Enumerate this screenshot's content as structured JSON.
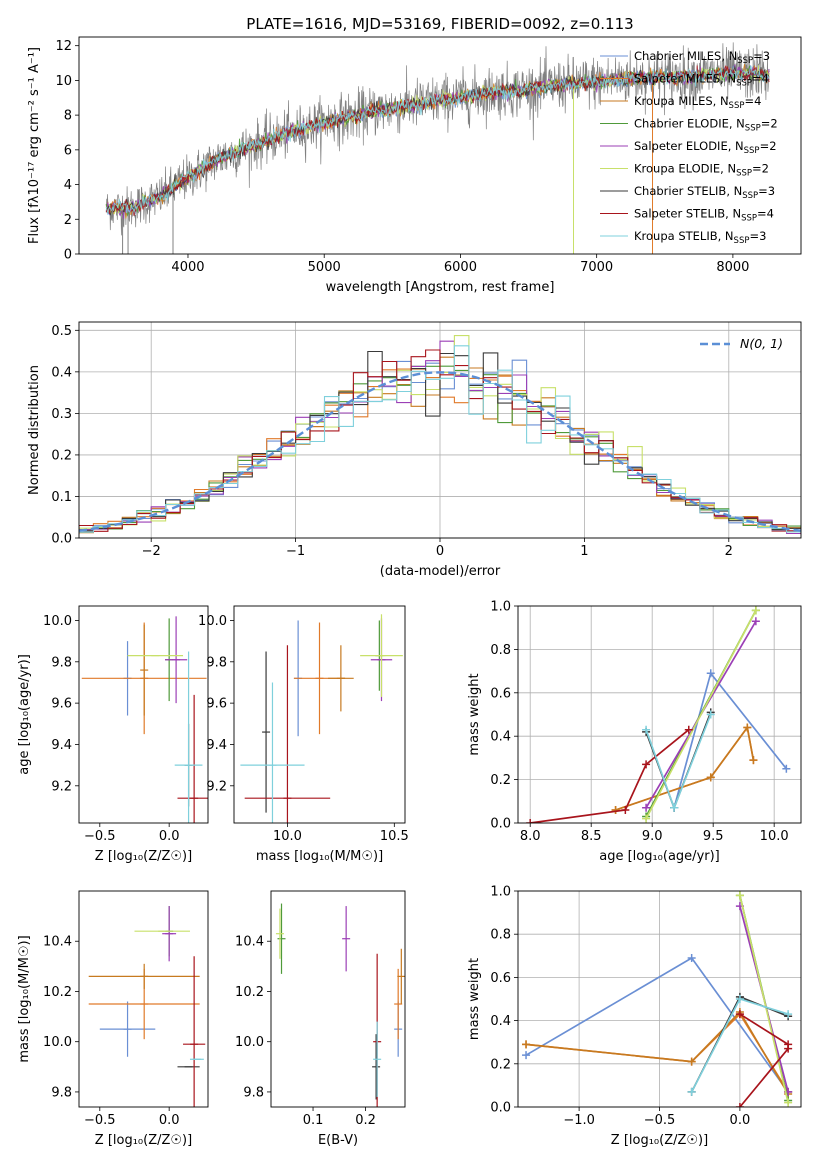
{
  "colors": {
    "Chabrier MILES": "#6a8fd4",
    "Salpeter MILES": "#e07a2a",
    "Kroupa MILES": "#c77a20",
    "Chabrier ELODIE": "#4f9a3a",
    "Salpeter ELODIE": "#9b3fb6",
    "Kroupa ELODIE": "#c8e06a",
    "Chabrier STELIB": "#3a3a3a",
    "Salpeter STELIB": "#a8141c",
    "Kroupa STELIB": "#7fd0dc",
    "normal_curve": "#5b8fd6",
    "grid": "#b0b0b0",
    "data": "#808080"
  },
  "chart_data": [
    {
      "id": "spectrum",
      "type": "line",
      "title": "PLATE=1616, MJD=53169, FIBERID=0092, z=0.113",
      "xlabel": "wavelength [Angstrom, rest frame]",
      "ylabel": "Flux [fλ10⁻¹⁷ erg cm⁻² s⁻¹ A⁻¹]",
      "xlim": [
        3200,
        8500
      ],
      "ylim": [
        0,
        12.5
      ],
      "xticks": [
        4000,
        5000,
        6000,
        7000,
        8000
      ],
      "yticks": [
        0,
        2,
        4,
        6,
        8,
        10,
        12
      ],
      "legend": [
        {
          "label": "Chabrier MILES, N",
          "sub": "SSP",
          "suffix": "=3",
          "model": "Chabrier MILES"
        },
        {
          "label": "Salpeter MILES, N",
          "sub": "SSP",
          "suffix": "=4",
          "model": "Salpeter MILES"
        },
        {
          "label": "Kroupa MILES, N",
          "sub": "SSP",
          "suffix": "=4",
          "model": "Kroupa MILES"
        },
        {
          "label": "Chabrier ELODIE, N",
          "sub": "SSP",
          "suffix": "=2",
          "model": "Chabrier ELODIE"
        },
        {
          "label": "Salpeter ELODIE, N",
          "sub": "SSP",
          "suffix": "=2",
          "model": "Salpeter ELODIE"
        },
        {
          "label": "Kroupa ELODIE, N",
          "sub": "SSP",
          "suffix": "=2",
          "model": "Kroupa ELODIE"
        },
        {
          "label": "Chabrier STELIB, N",
          "sub": "SSP",
          "suffix": "=3",
          "model": "Chabrier STELIB"
        },
        {
          "label": "Salpeter STELIB, N",
          "sub": "SSP",
          "suffix": "=4",
          "model": "Salpeter STELIB"
        },
        {
          "label": "Kroupa STELIB, N",
          "sub": "SSP",
          "suffix": "=3",
          "model": "Kroupa STELIB"
        }
      ],
      "legend_position": "right",
      "continuum": {
        "wavelength": [
          3400,
          3600,
          3800,
          4000,
          4200,
          4400,
          4600,
          4800,
          5000,
          5200,
          5400,
          5600,
          5800,
          6000,
          6200,
          6400,
          6600,
          6800,
          7000,
          7200,
          7400,
          7600,
          7800,
          8000,
          8200,
          8270
        ],
        "flux": [
          2.6,
          2.7,
          3.3,
          4.4,
          5.4,
          6.0,
          6.6,
          7.1,
          7.6,
          7.9,
          8.3,
          8.5,
          8.8,
          9.0,
          9.3,
          9.4,
          9.6,
          9.8,
          9.9,
          10.1,
          10.2,
          10.2,
          10.3,
          10.4,
          10.4,
          10.3
        ]
      },
      "model_range": [
        3400,
        8270
      ],
      "data_spikes_wavelength": [
        3520,
        3560,
        3890,
        6830,
        7410
      ]
    },
    {
      "id": "residuals",
      "type": "histogram",
      "xlabel": "(data-model)/error",
      "ylabel": "Normed distribution",
      "xlim": [
        -2.5,
        2.5
      ],
      "ylim": [
        0,
        0.52
      ],
      "xticks": [
        -2,
        -1,
        0,
        1,
        2
      ],
      "yticks": [
        0.0,
        0.1,
        0.2,
        0.3,
        0.4,
        0.5
      ],
      "grid": true,
      "legend": "N(0, 1)",
      "legend_position": "top-right",
      "bin_width": 0.1
    },
    {
      "id": "age_vs_Z",
      "type": "errorbar",
      "xlabel": "Z [log₁₀(Z/Z☉)]",
      "ylabel": "age  [log₁₀(age/yr)]",
      "xlim": [
        -0.65,
        0.28
      ],
      "ylim": [
        9.02,
        10.07
      ],
      "xticks": [
        -0.5,
        0.0
      ],
      "yticks": [
        9.2,
        9.4,
        9.6,
        9.8,
        10.0
      ],
      "points": [
        {
          "model": "Chabrier MILES",
          "x": -0.3,
          "xerr": 0.0,
          "y": 9.72,
          "yerr": 0.18
        },
        {
          "model": "Salpeter MILES",
          "x": -0.18,
          "xerr": 0.45,
          "y": 9.72,
          "yerr": 0.27
        },
        {
          "model": "Kroupa MILES",
          "x": -0.18,
          "xerr": 0.0,
          "y": 9.76,
          "yerr": 0.22
        },
        {
          "model": "Chabrier ELODIE",
          "x": 0.0,
          "xerr": 0.0,
          "y": 9.81,
          "yerr": 0.2
        },
        {
          "model": "Salpeter ELODIE",
          "x": 0.05,
          "xerr": 0.08,
          "y": 9.81,
          "yerr": 0.21
        },
        {
          "model": "Kroupa ELODIE",
          "x": -0.1,
          "xerr": 0.2,
          "y": 9.83,
          "yerr": 0.0
        },
        {
          "model": "Chabrier STELIB",
          "x": 0.14,
          "xerr": 0.0,
          "y": 9.3,
          "yerr": 0.2
        },
        {
          "model": "Salpeter STELIB",
          "x": 0.18,
          "xerr": 0.12,
          "y": 9.14,
          "yerr": 0.5
        },
        {
          "model": "Kroupa STELIB",
          "x": 0.14,
          "xerr": 0.1,
          "y": 9.3,
          "yerr": 0.55
        }
      ]
    },
    {
      "id": "age_vs_mass",
      "type": "errorbar",
      "xlabel": "mass [log₁₀(M/M☉)]",
      "ylabel": "",
      "xlim": [
        9.75,
        10.55
      ],
      "ylim": [
        9.02,
        10.07
      ],
      "xticks": [
        10.0,
        10.5
      ],
      "yticks": [
        9.2,
        9.4,
        9.6,
        9.8,
        10.0
      ],
      "points": [
        {
          "model": "Chabrier MILES",
          "x": 10.05,
          "xerr": 0.0,
          "y": 9.72,
          "yerr": 0.28
        },
        {
          "model": "Salpeter MILES",
          "x": 10.15,
          "xerr": 0.12,
          "y": 9.72,
          "yerr": 0.27
        },
        {
          "model": "Kroupa MILES",
          "x": 10.25,
          "xerr": 0.06,
          "y": 9.72,
          "yerr": 0.16
        },
        {
          "model": "Chabrier ELODIE",
          "x": 10.43,
          "xerr": 0.0,
          "y": 9.83,
          "yerr": 0.17
        },
        {
          "model": "Salpeter ELODIE",
          "x": 10.44,
          "xerr": 0.05,
          "y": 9.81,
          "yerr": 0.2
        },
        {
          "model": "Kroupa ELODIE",
          "x": 10.44,
          "xerr": 0.1,
          "y": 9.83,
          "yerr": 0.2
        },
        {
          "model": "Chabrier STELIB",
          "x": 9.9,
          "xerr": 0.0,
          "y": 9.46,
          "yerr": 0.39
        },
        {
          "model": "Salpeter STELIB",
          "x": 10.0,
          "xerr": 0.2,
          "y": 9.14,
          "yerr": 0.74
        },
        {
          "model": "Kroupa STELIB",
          "x": 9.93,
          "xerr": 0.15,
          "y": 9.3,
          "yerr": 0.4
        }
      ]
    },
    {
      "id": "weight_vs_age",
      "type": "line",
      "xlabel": "age  [log₁₀(age/yr)]",
      "ylabel": "mass weight",
      "xlim": [
        7.9,
        10.22
      ],
      "ylim": [
        0.0,
        1.0
      ],
      "xticks": [
        8.0,
        8.5,
        9.0,
        9.5,
        10.0
      ],
      "yticks": [
        0.0,
        0.2,
        0.4,
        0.6,
        0.8,
        1.0
      ],
      "grid": true,
      "series": [
        {
          "model": "Chabrier MILES",
          "x": [
            9.18,
            9.48,
            10.1
          ],
          "y": [
            0.07,
            0.69,
            0.25
          ]
        },
        {
          "model": "Salpeter MILES",
          "x": [
            8.7,
            9.48,
            9.78,
            9.83
          ],
          "y": [
            0.06,
            0.21,
            0.44,
            0.29
          ]
        },
        {
          "model": "Kroupa MILES",
          "x": [
            8.7,
            9.48,
            9.78,
            9.83
          ],
          "y": [
            0.06,
            0.21,
            0.44,
            0.29
          ]
        },
        {
          "model": "Chabrier ELODIE",
          "x": [
            8.95,
            9.85
          ],
          "y": [
            0.03,
            0.98
          ]
        },
        {
          "model": "Salpeter ELODIE",
          "x": [
            8.95,
            9.85
          ],
          "y": [
            0.07,
            0.93
          ]
        },
        {
          "model": "Kroupa ELODIE",
          "x": [
            8.95,
            9.85
          ],
          "y": [
            0.02,
            0.98
          ]
        },
        {
          "model": "Chabrier STELIB",
          "x": [
            8.95,
            9.18,
            9.48
          ],
          "y": [
            0.42,
            0.07,
            0.51
          ]
        },
        {
          "model": "Salpeter STELIB",
          "x": [
            8.0,
            8.78,
            8.95,
            9.3
          ],
          "y": [
            0.0,
            0.06,
            0.27,
            0.43
          ]
        },
        {
          "model": "Kroupa STELIB",
          "x": [
            8.95,
            9.18,
            9.48
          ],
          "y": [
            0.43,
            0.07,
            0.5
          ]
        }
      ]
    },
    {
      "id": "mass_vs_Z",
      "type": "errorbar",
      "xlabel": "Z [log₁₀(Z/Z☉)]",
      "ylabel": "mass [log₁₀(M/M☉)]",
      "xlim": [
        -0.65,
        0.28
      ],
      "ylim": [
        9.74,
        10.6
      ],
      "xticks": [
        -0.5,
        0.0
      ],
      "yticks": [
        9.8,
        10.0,
        10.2,
        10.4
      ],
      "points": [
        {
          "model": "Chabrier MILES",
          "x": -0.3,
          "xerr": 0.2,
          "y": 10.05,
          "yerr": 0.11
        },
        {
          "model": "Salpeter MILES",
          "x": -0.18,
          "xerr": 0.4,
          "y": 10.15,
          "yerr": 0.14
        },
        {
          "model": "Kroupa MILES",
          "x": -0.18,
          "xerr": 0.4,
          "y": 10.26,
          "yerr": 0.05
        },
        {
          "model": "Chabrier ELODIE",
          "x": 0.0,
          "xerr": 0.0,
          "y": 10.44,
          "yerr": 0.1
        },
        {
          "model": "Salpeter ELODIE",
          "x": 0.0,
          "xerr": 0.05,
          "y": 10.43,
          "yerr": 0.11
        },
        {
          "model": "Kroupa ELODIE",
          "x": -0.05,
          "xerr": 0.2,
          "y": 10.44,
          "yerr": 0.0
        },
        {
          "model": "Chabrier STELIB",
          "x": 0.14,
          "xerr": 0.08,
          "y": 9.9,
          "yerr": 0.0
        },
        {
          "model": "Salpeter STELIB",
          "x": 0.18,
          "xerr": 0.08,
          "y": 9.99,
          "yerr": 0.35
        },
        {
          "model": "Kroupa STELIB",
          "x": 0.2,
          "xerr": 0.05,
          "y": 9.93,
          "yerr": 0.0
        }
      ]
    },
    {
      "id": "mass_vs_ebv",
      "type": "errorbar",
      "xlabel": "E(B-V)",
      "ylabel": "",
      "xlim": [
        0.02,
        0.275
      ],
      "ylim": [
        9.74,
        10.6
      ],
      "xticks": [
        0.1,
        0.2
      ],
      "yticks": [
        9.8,
        10.0,
        10.2,
        10.4
      ],
      "points": [
        {
          "model": "Chabrier MILES",
          "x": 0.262,
          "xerr": 0.0,
          "y": 10.05,
          "yerr": 0.11
        },
        {
          "model": "Salpeter MILES",
          "x": 0.262,
          "xerr": 0.0,
          "y": 10.15,
          "yerr": 0.14
        },
        {
          "model": "Kroupa MILES",
          "x": 0.268,
          "xerr": 0.0,
          "y": 10.26,
          "yerr": 0.11
        },
        {
          "model": "Chabrier ELODIE",
          "x": 0.04,
          "xerr": 0.0,
          "y": 10.41,
          "yerr": 0.14
        },
        {
          "model": "Salpeter ELODIE",
          "x": 0.163,
          "xerr": 0.0,
          "y": 10.41,
          "yerr": 0.13
        },
        {
          "model": "Kroupa ELODIE",
          "x": 0.037,
          "xerr": 0.0,
          "y": 10.43,
          "yerr": 0.1
        },
        {
          "model": "Chabrier STELIB",
          "x": 0.22,
          "xerr": 0.0,
          "y": 9.9,
          "yerr": 0.13
        },
        {
          "model": "Salpeter STELIB",
          "x": 0.222,
          "xerr": 0.0,
          "y": 10.0,
          "yerr": 0.35
        },
        {
          "model": "Kroupa STELIB",
          "x": 0.222,
          "xerr": 0.0,
          "y": 9.93,
          "yerr": 0.15
        }
      ]
    },
    {
      "id": "weight_vs_Z",
      "type": "line",
      "xlabel": "Z [log₁₀(Z/Z☉)]",
      "ylabel": "mass weight",
      "xlim": [
        -1.38,
        0.38
      ],
      "ylim": [
        0.0,
        1.0
      ],
      "xticks": [
        -1.0,
        -0.5,
        0.0
      ],
      "yticks": [
        0.0,
        0.2,
        0.4,
        0.6,
        0.8,
        1.0
      ],
      "grid": true,
      "series": [
        {
          "model": "Chabrier MILES",
          "x": [
            -1.33,
            -0.3,
            0.3
          ],
          "y": [
            0.24,
            0.69,
            0.07
          ]
        },
        {
          "model": "Salpeter MILES",
          "x": [
            -1.33,
            -0.3,
            0.0,
            0.3
          ],
          "y": [
            0.29,
            0.21,
            0.43,
            0.07
          ]
        },
        {
          "model": "Kroupa MILES",
          "x": [
            -1.33,
            -0.3,
            0.0,
            0.3
          ],
          "y": [
            0.29,
            0.21,
            0.44,
            0.06
          ]
        },
        {
          "model": "Chabrier ELODIE",
          "x": [
            0.0,
            0.3
          ],
          "y": [
            0.98,
            0.03
          ]
        },
        {
          "model": "Salpeter ELODIE",
          "x": [
            0.0,
            0.3
          ],
          "y": [
            0.93,
            0.07
          ]
        },
        {
          "model": "Kroupa ELODIE",
          "x": [
            0.0,
            0.3
          ],
          "y": [
            0.98,
            0.02
          ]
        },
        {
          "model": "Chabrier STELIB",
          "x": [
            -0.3,
            0.0,
            0.3
          ],
          "y": [
            0.07,
            0.51,
            0.42
          ]
        },
        {
          "model": "Salpeter STELIB",
          "x": [
            0.0,
            0.3,
            0.3,
            0.0
          ],
          "y": [
            0.43,
            0.29,
            0.27,
            0.0
          ]
        },
        {
          "model": "Kroupa STELIB",
          "x": [
            -0.3,
            0.0,
            0.3
          ],
          "y": [
            0.07,
            0.5,
            0.43
          ]
        }
      ]
    }
  ]
}
